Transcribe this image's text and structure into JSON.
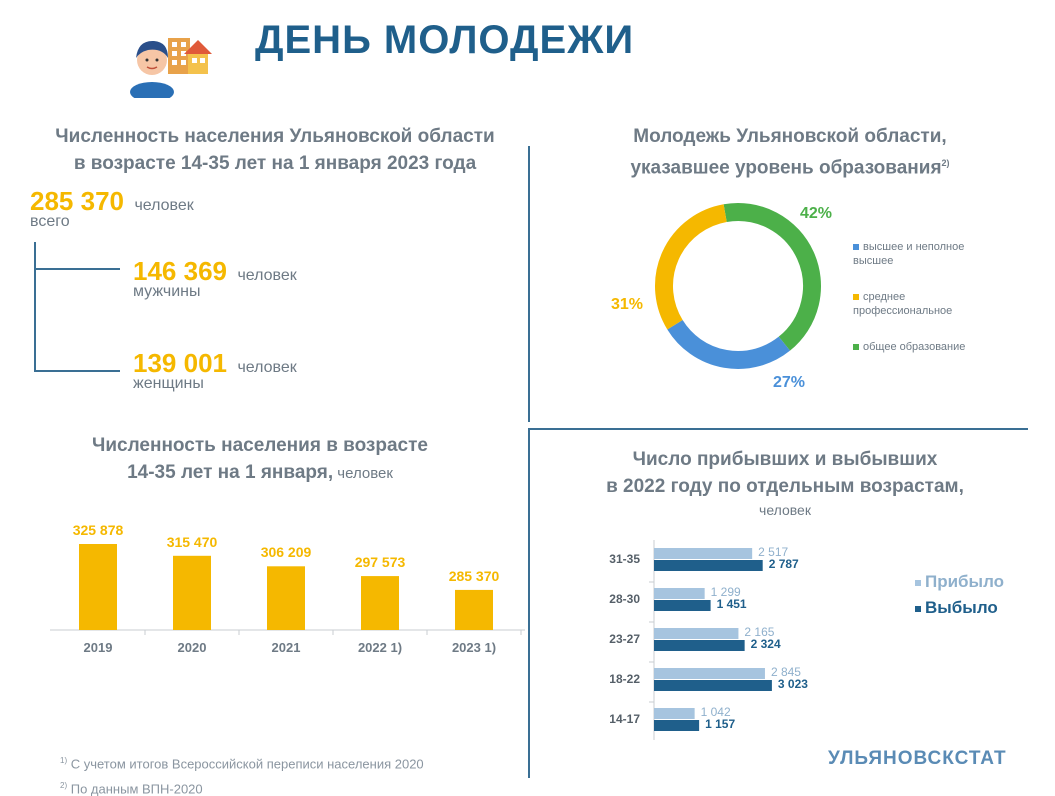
{
  "header": {
    "title": "ДЕНЬ МОЛОДЕЖИ"
  },
  "population": {
    "title_line1": "Численность населения Ульяновской области",
    "title_line2": "в возрасте 14-35 лет на 1 января 2023 года",
    "total_value": "285 370",
    "total_unit": "человек",
    "total_sub": "всего",
    "male_value": "146 369",
    "male_unit": "человек",
    "male_sub": "мужчины",
    "female_value": "139 001",
    "female_unit": "человек",
    "female_sub": "женщины"
  },
  "education": {
    "title_line1": "Молодежь Ульяновской области,",
    "title_line2": "указавшее уровень образования",
    "title_sup": "2)"
  },
  "bars": {
    "title_line1": "Численность населения в возрасте",
    "title_line2": "14-35 лет на 1 января,",
    "title_unit": " человек"
  },
  "migration": {
    "title_line1": "Число прибывших и выбывших",
    "title_line2": "в 2022 году по отдельным возрастам,",
    "title_unit": "человек"
  },
  "footnotes": {
    "note1_sup": "1)",
    "note1": " С учетом итогов Всероссийской переписи населения 2020",
    "note2_sup": "2)",
    "note2": " По данным ВПН-2020"
  },
  "brand": "УЛЬЯНОВСКСТАТ",
  "colors": {
    "yellow": "#f5b800",
    "blue_dark": "#1f5f8b",
    "blue_light": "#a6c4df",
    "blue_donut": "#4a90d9",
    "green_donut": "#4cb049",
    "text_gray": "#6e7a85"
  },
  "chart_data": [
    {
      "type": "pie",
      "title": "Молодежь Ульяновской области, указавшее уровень образования",
      "categories": [
        "высшее и неполное высшее",
        "среднее профессиональное",
        "общее образование"
      ],
      "values": [
        27,
        31,
        42
      ],
      "labels": [
        "27%",
        "31%",
        "42%"
      ],
      "colors": [
        "#4a90d9",
        "#f5b800",
        "#4cb049"
      ],
      "legend": "right"
    },
    {
      "type": "bar",
      "title": "Численность населения в возрасте 14-35 лет на 1 января, человек",
      "categories": [
        "2019",
        "2020",
        "2021",
        "2022 1)",
        "2023 1)"
      ],
      "values": [
        325878,
        315470,
        306209,
        297573,
        285370
      ],
      "labels": [
        "325 878",
        "315 470",
        "306 209",
        "297 573",
        "285 370"
      ],
      "ylim": [
        250000,
        340000
      ]
    },
    {
      "type": "bar",
      "orientation": "horizontal",
      "title": "Число прибывших и выбывших в 2022 году по отдельным возрастам, человек",
      "categories": [
        "31-35",
        "28-30",
        "23-27",
        "18-22",
        "14-17"
      ],
      "series": [
        {
          "name": "Прибыло",
          "values": [
            2517,
            1299,
            2165,
            2845,
            1042
          ],
          "labels": [
            "2 517",
            "1 299",
            "2 165",
            "2 845",
            "1 042"
          ]
        },
        {
          "name": "Выбыло",
          "values": [
            2787,
            1451,
            2324,
            3023,
            1157
          ],
          "labels": [
            "2 787",
            "1 451",
            "2 324",
            "3 023",
            "1 157"
          ]
        }
      ],
      "legend": "right"
    }
  ]
}
